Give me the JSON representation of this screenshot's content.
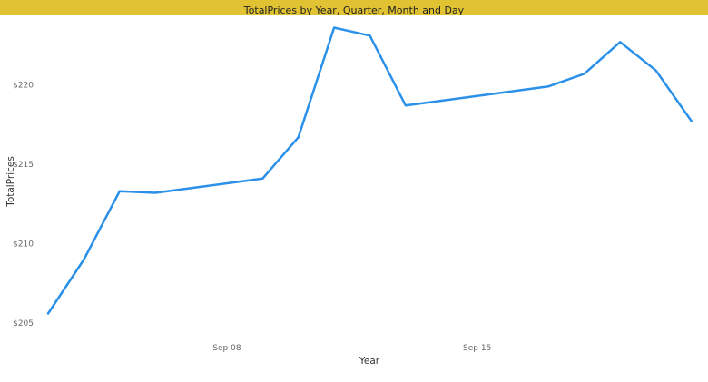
{
  "title": "TotalPrices by Year, Quarter, Month and Day",
  "colors": {
    "title_bar": "#e1c233",
    "series_line": "#2a90e8"
  },
  "chart_data": {
    "type": "line",
    "title": "TotalPrices by Year, Quarter, Month and Day",
    "xlabel": "Year",
    "ylabel": "TotalPrices",
    "x_tick_labels": [
      "Sep 08",
      "Sep 15"
    ],
    "y_tick_labels": [
      "$205",
      "$210",
      "$215",
      "$220"
    ],
    "ylim": [
      205,
      223.5
    ],
    "grid": false,
    "legend": "none",
    "series": [
      {
        "x": [
          "Sep 03",
          "Sep 04",
          "Sep 05",
          "Sep 06",
          "Sep 09",
          "Sep 10",
          "Sep 11",
          "Sep 12",
          "Sep 13",
          "Sep 17",
          "Sep 18",
          "Sep 19",
          "Sep 20",
          "Sep 21"
        ],
        "values": [
          205.6,
          209.0,
          213.3,
          213.2,
          214.1,
          216.7,
          223.6,
          223.1,
          218.7,
          219.9,
          220.7,
          222.7,
          220.9,
          217.7
        ],
        "color": "#2a90e8"
      }
    ]
  }
}
